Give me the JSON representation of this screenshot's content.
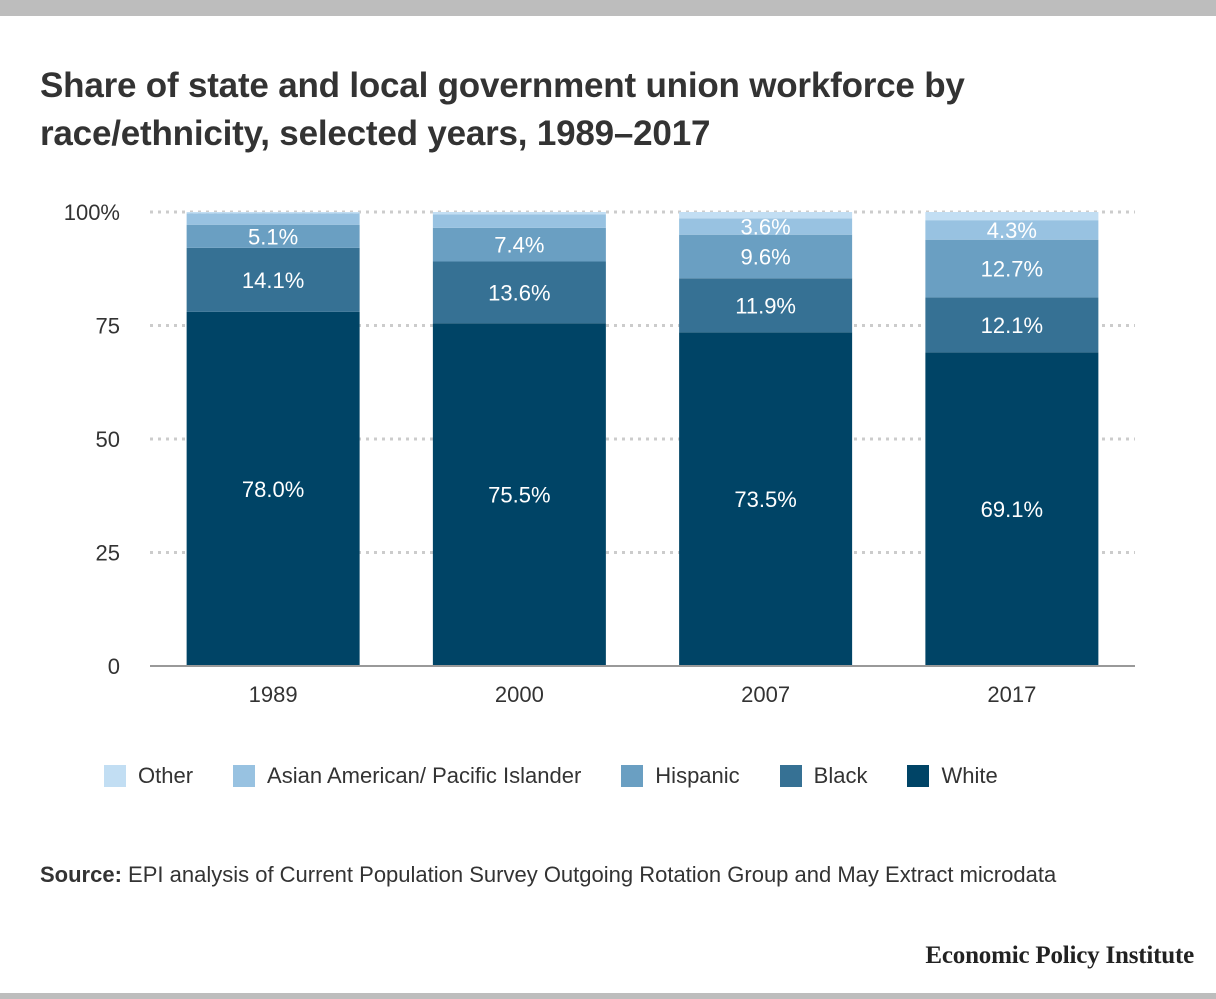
{
  "header": {
    "title": "Share of state and local government union workforce by race/ethnicity, selected years, 1989–2017"
  },
  "chart_data": {
    "type": "bar",
    "stacked": true,
    "categories": [
      "1989",
      "2000",
      "2007",
      "2017"
    ],
    "series": [
      {
        "name": "White",
        "color": "#004466",
        "values": [
          78.0,
          75.5,
          73.5,
          69.1
        ]
      },
      {
        "name": "Black",
        "color": "#367194",
        "values": [
          14.1,
          13.6,
          11.9,
          12.1
        ]
      },
      {
        "name": "Hispanic",
        "color": "#6a9fc2",
        "values": [
          5.1,
          7.4,
          9.6,
          12.7
        ]
      },
      {
        "name": "Asian American/ Pacific Islander",
        "color": "#98c2e1",
        "values": [
          2.5,
          3.0,
          3.6,
          4.3
        ]
      },
      {
        "name": "Other",
        "color": "#c2def3",
        "values": [
          0.3,
          0.5,
          1.4,
          1.8
        ]
      }
    ],
    "data_labels": {
      "White": [
        "78.0%",
        "75.5%",
        "73.5%",
        "69.1%"
      ],
      "Black": [
        "14.1%",
        "13.6%",
        "11.9%",
        "12.1%"
      ],
      "Hispanic": [
        "5.1%",
        "7.4%",
        "9.6%",
        "12.7%"
      ],
      "Asian American/ Pacific Islander": [
        "",
        "",
        "3.6%",
        "4.3%"
      ],
      "Other": [
        "",
        "",
        "",
        ""
      ]
    },
    "yticks": [
      {
        "value": 0,
        "label": "0"
      },
      {
        "value": 25,
        "label": "25"
      },
      {
        "value": 50,
        "label": "50"
      },
      {
        "value": 75,
        "label": "75"
      },
      {
        "value": 100,
        "label": "100%"
      }
    ],
    "ylim": [
      0,
      100
    ],
    "grid": "dotted horizontal",
    "legend_position": "bottom",
    "xlabel": "",
    "ylabel": ""
  },
  "legend": [
    {
      "label": "Other",
      "color": "#c2def3"
    },
    {
      "label": "Asian American/ Pacific Islander",
      "color": "#98c2e1"
    },
    {
      "label": "Hispanic",
      "color": "#6a9fc2"
    },
    {
      "label": "Black",
      "color": "#367194"
    },
    {
      "label": "White",
      "color": "#004466"
    }
  ],
  "source": {
    "label": "Source:",
    "text": "EPI analysis of Current Population Survey Outgoing Rotation Group and May Extract microdata"
  },
  "brand": "Economic Policy Institute"
}
